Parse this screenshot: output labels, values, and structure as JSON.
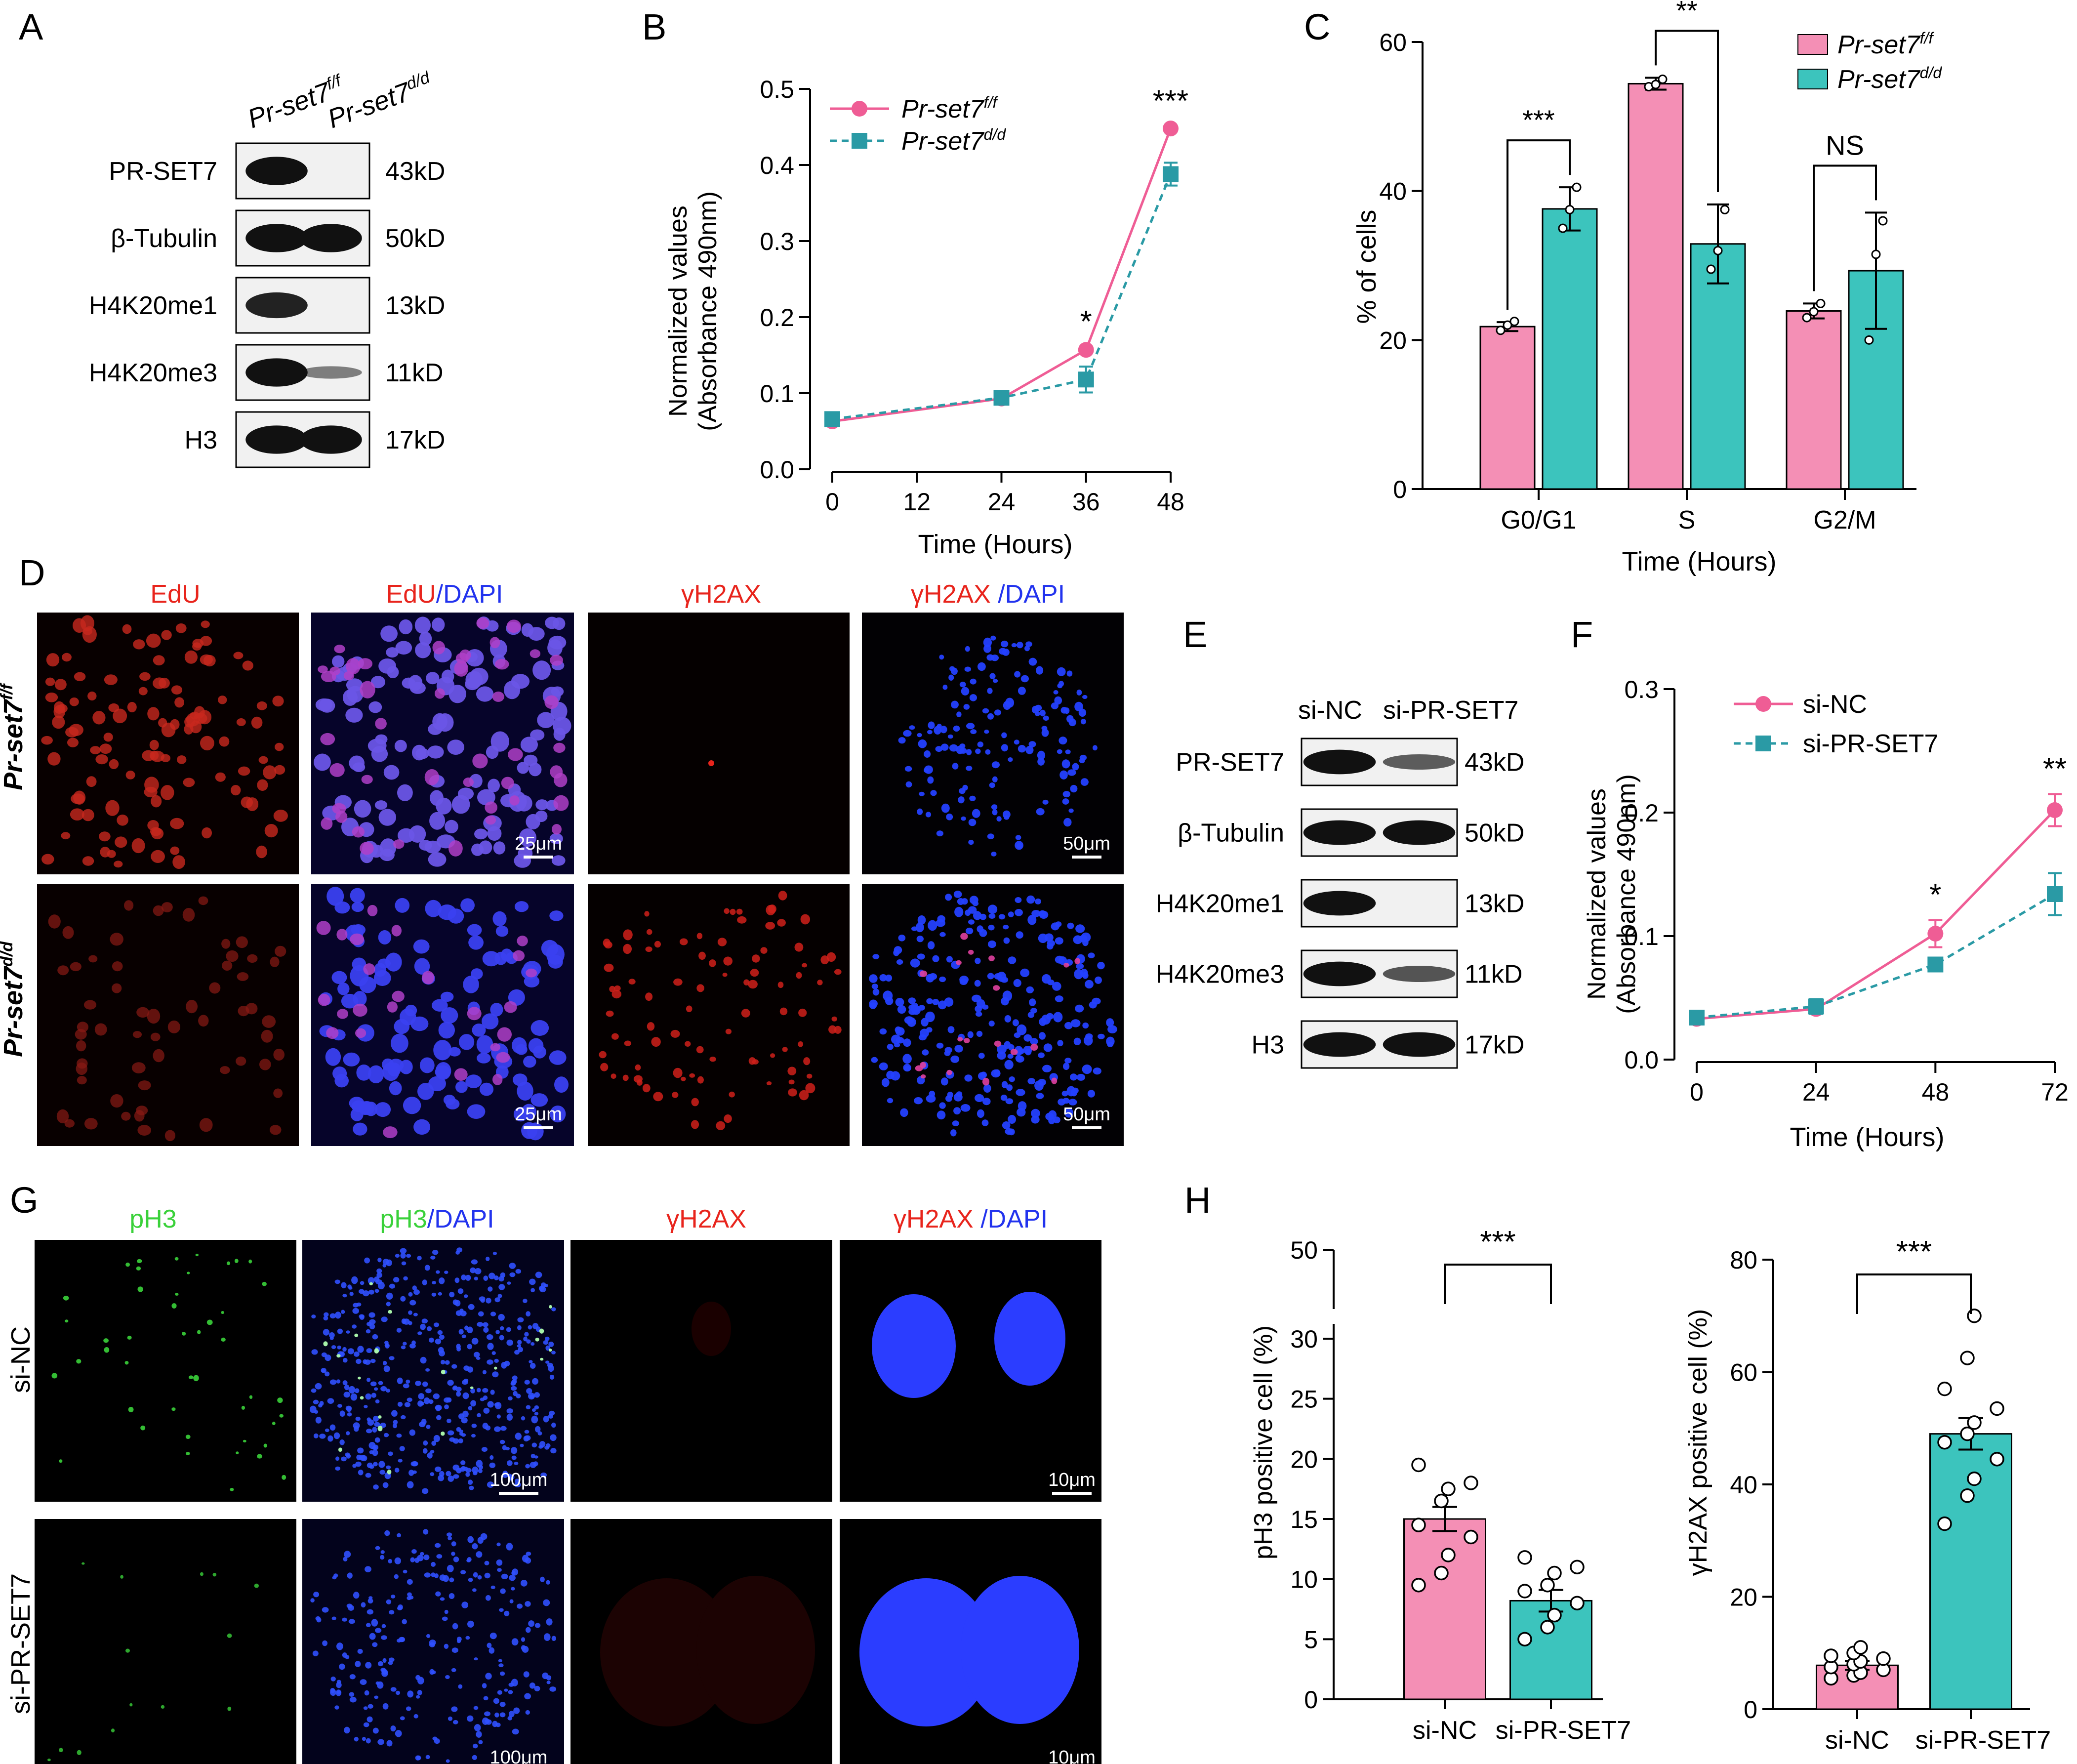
{
  "colors": {
    "pink": "#f48fb5",
    "pink_line": "#ef5d95",
    "teal": "#3cc4bd",
    "teal_line": "#2a9aa5",
    "red": "#e8241c",
    "blue": "#2233ee",
    "green": "#3ad13a",
    "black": "#000000"
  },
  "panel_letters": {
    "A": "A",
    "B": "B",
    "C": "C",
    "D": "D",
    "E": "E",
    "F": "F",
    "G": "G",
    "H": "H"
  },
  "panelA": {
    "col_f_base": "Pr-set7",
    "col_f_sup": "f/f",
    "col_d_base": "Pr-set7",
    "col_d_sup": "d/d",
    "bands": [
      {
        "label": "PR-SET7",
        "kd": "43kD"
      },
      {
        "label": "β-Tubulin",
        "kd": "50kD"
      },
      {
        "label": "H4K20me1",
        "kd": "13kD"
      },
      {
        "label": "H4K20me3",
        "kd": "11kD"
      },
      {
        "label": "H3",
        "kd": "17kD"
      }
    ]
  },
  "panelD": {
    "headers": [
      {
        "a": "EdU",
        "b": ""
      },
      {
        "a": "EdU",
        "b": "/DAPI"
      },
      {
        "a": "γH2AX",
        "b": ""
      },
      {
        "a": "γH2AX",
        "b": " /DAPI"
      }
    ],
    "row_f_base": "Pr-set7",
    "row_f_sup": "f/f",
    "row_d_base": "Pr-set7",
    "row_d_sup": "d/d",
    "scale_25": "25μm",
    "scale_50": "50μm"
  },
  "panelE": {
    "col1": "si-NC",
    "col2": "si-PR-SET7",
    "bands": [
      {
        "label": "PR-SET7",
        "kd": "43kD"
      },
      {
        "label": "β-Tubulin",
        "kd": "50kD"
      },
      {
        "label": "H4K20me1",
        "kd": "13kD"
      },
      {
        "label": "H4K20me3",
        "kd": "11kD"
      },
      {
        "label": "H3",
        "kd": "17kD"
      }
    ]
  },
  "panelG": {
    "headers": [
      {
        "a": "pH3",
        "b": ""
      },
      {
        "a": "pH3",
        "b": "/DAPI"
      },
      {
        "a": "γH2AX",
        "b": ""
      },
      {
        "a": "γH2AX",
        "b": " /DAPI"
      }
    ],
    "row1": "si-NC",
    "row2": "si-PR-SET7",
    "scale_100": "100μm",
    "scale_10": "10μm"
  },
  "chart_data": [
    {
      "id": "B",
      "type": "line",
      "xlabel": "Time (Hours)",
      "ylabel_line1": "Normalized values",
      "ylabel_line2": "(Absorbance 490nm)",
      "x_ticks": [
        "0",
        "12",
        "24",
        "36",
        "48"
      ],
      "y_ticks": [
        "0.0",
        "0.1",
        "0.2",
        "0.3",
        "0.4",
        "0.5"
      ],
      "xlim": [
        0,
        48
      ],
      "ylim": [
        0,
        0.5
      ],
      "series": [
        {
          "name_base": "Pr-set7",
          "name_sup": "f/f",
          "x": [
            0,
            24,
            36,
            48
          ],
          "y": [
            0.063,
            0.093,
            0.157,
            0.448
          ],
          "err": [
            0.004,
            0.004,
            0.004,
            0.003
          ]
        },
        {
          "name_base": "Pr-set7",
          "name_sup": "d/d",
          "x": [
            0,
            24,
            36,
            48
          ],
          "y": [
            0.066,
            0.094,
            0.118,
            0.388
          ],
          "err": [
            0.004,
            0.004,
            0.017,
            0.015
          ]
        }
      ],
      "annotations": [
        {
          "x": 36,
          "text": "*"
        },
        {
          "x": 48,
          "text": "***"
        }
      ],
      "legend": "top-left"
    },
    {
      "id": "C",
      "type": "bar",
      "xlabel": "Time (Hours)",
      "ylabel": "% of cells",
      "categories": [
        "G0/G1",
        "S",
        "G2/M"
      ],
      "y_ticks": [
        "0",
        "20",
        "40",
        "60"
      ],
      "ylim": [
        0,
        60
      ],
      "series": [
        {
          "name_base": "Pr-set7",
          "name_sup": "f/f",
          "values": [
            21.8,
            54.4,
            23.9
          ],
          "err": [
            0.6,
            0.8,
            1.0
          ],
          "points": [
            [
              21.3,
              22.0,
              22.5
            ],
            [
              54.0,
              54.3,
              55.0
            ],
            [
              23.0,
              23.8,
              24.9
            ]
          ]
        },
        {
          "name_base": "Pr-set7",
          "name_sup": "d/d",
          "values": [
            37.6,
            32.9,
            29.3
          ],
          "err": [
            2.9,
            5.3,
            7.8
          ],
          "points": [
            [
              35.0,
              37.5,
              40.5
            ],
            [
              29.5,
              32.0,
              37.5
            ],
            [
              20.0,
              31.5,
              36.0
            ]
          ]
        }
      ],
      "annotations": [
        "***",
        "**",
        "NS"
      ],
      "legend": "top-right"
    },
    {
      "id": "F",
      "type": "line",
      "xlabel": "Time (Hours)",
      "ylabel_line1": "Normalized values",
      "ylabel_line2": "(Absorbance 490nm)",
      "x_ticks": [
        "0",
        "24",
        "48",
        "72"
      ],
      "y_ticks": [
        "0.0",
        "0.1",
        "0.2",
        "0.3"
      ],
      "xlim": [
        0,
        72
      ],
      "ylim": [
        0,
        0.3
      ],
      "series": [
        {
          "name": "si-NC",
          "x": [
            0,
            24,
            48,
            72
          ],
          "y": [
            0.033,
            0.041,
            0.102,
            0.202
          ],
          "err": [
            0.004,
            0.005,
            0.011,
            0.013
          ]
        },
        {
          "name": "si-PR-SET7",
          "x": [
            0,
            24,
            48,
            72
          ],
          "y": [
            0.034,
            0.043,
            0.077,
            0.134
          ],
          "err": [
            0.004,
            0.006,
            0.004,
            0.017
          ]
        }
      ],
      "annotations": [
        {
          "x": 48,
          "text": "*"
        },
        {
          "x": 72,
          "text": "**"
        }
      ],
      "legend": "top-left"
    },
    {
      "id": "H1",
      "type": "bar",
      "ylabel": "pH3 positive cell (%)",
      "categories": [
        "si-NC",
        "si-PR-SET7"
      ],
      "y_ticks": [
        "0",
        "5",
        "10",
        "15",
        "20",
        "25",
        "30",
        "50"
      ],
      "ylim": [
        0,
        50
      ],
      "axis_break": [
        30,
        50
      ],
      "values": [
        15.0,
        8.2
      ],
      "err": [
        1.0,
        0.9
      ],
      "points": [
        [
          9.5,
          10.5,
          12.0,
          13.5,
          14.5,
          16.5,
          17.5,
          18.0,
          19.5
        ],
        [
          5.0,
          6.0,
          7.0,
          8.0,
          9.0,
          9.5,
          10.5,
          11.0,
          11.8
        ]
      ],
      "annotation": "***"
    },
    {
      "id": "H2",
      "type": "bar",
      "ylabel": "γH2AX positive cell (%)",
      "categories": [
        "si-NC",
        "si-PR-SET7"
      ],
      "y_ticks": [
        "0",
        "20",
        "40",
        "60",
        "80"
      ],
      "ylim": [
        0,
        80
      ],
      "values": [
        7.8,
        49.0
      ],
      "err": [
        0.8,
        2.8
      ],
      "points": [
        [
          5.5,
          6.0,
          6.5,
          7.0,
          7.5,
          8.0,
          8.5,
          9.0,
          9.5,
          10.0,
          11.0
        ],
        [
          33.0,
          38.0,
          41.0,
          44.5,
          47.5,
          49.0,
          51.0,
          53.5,
          57.0,
          62.5,
          70.0
        ]
      ],
      "annotation": "***"
    }
  ]
}
